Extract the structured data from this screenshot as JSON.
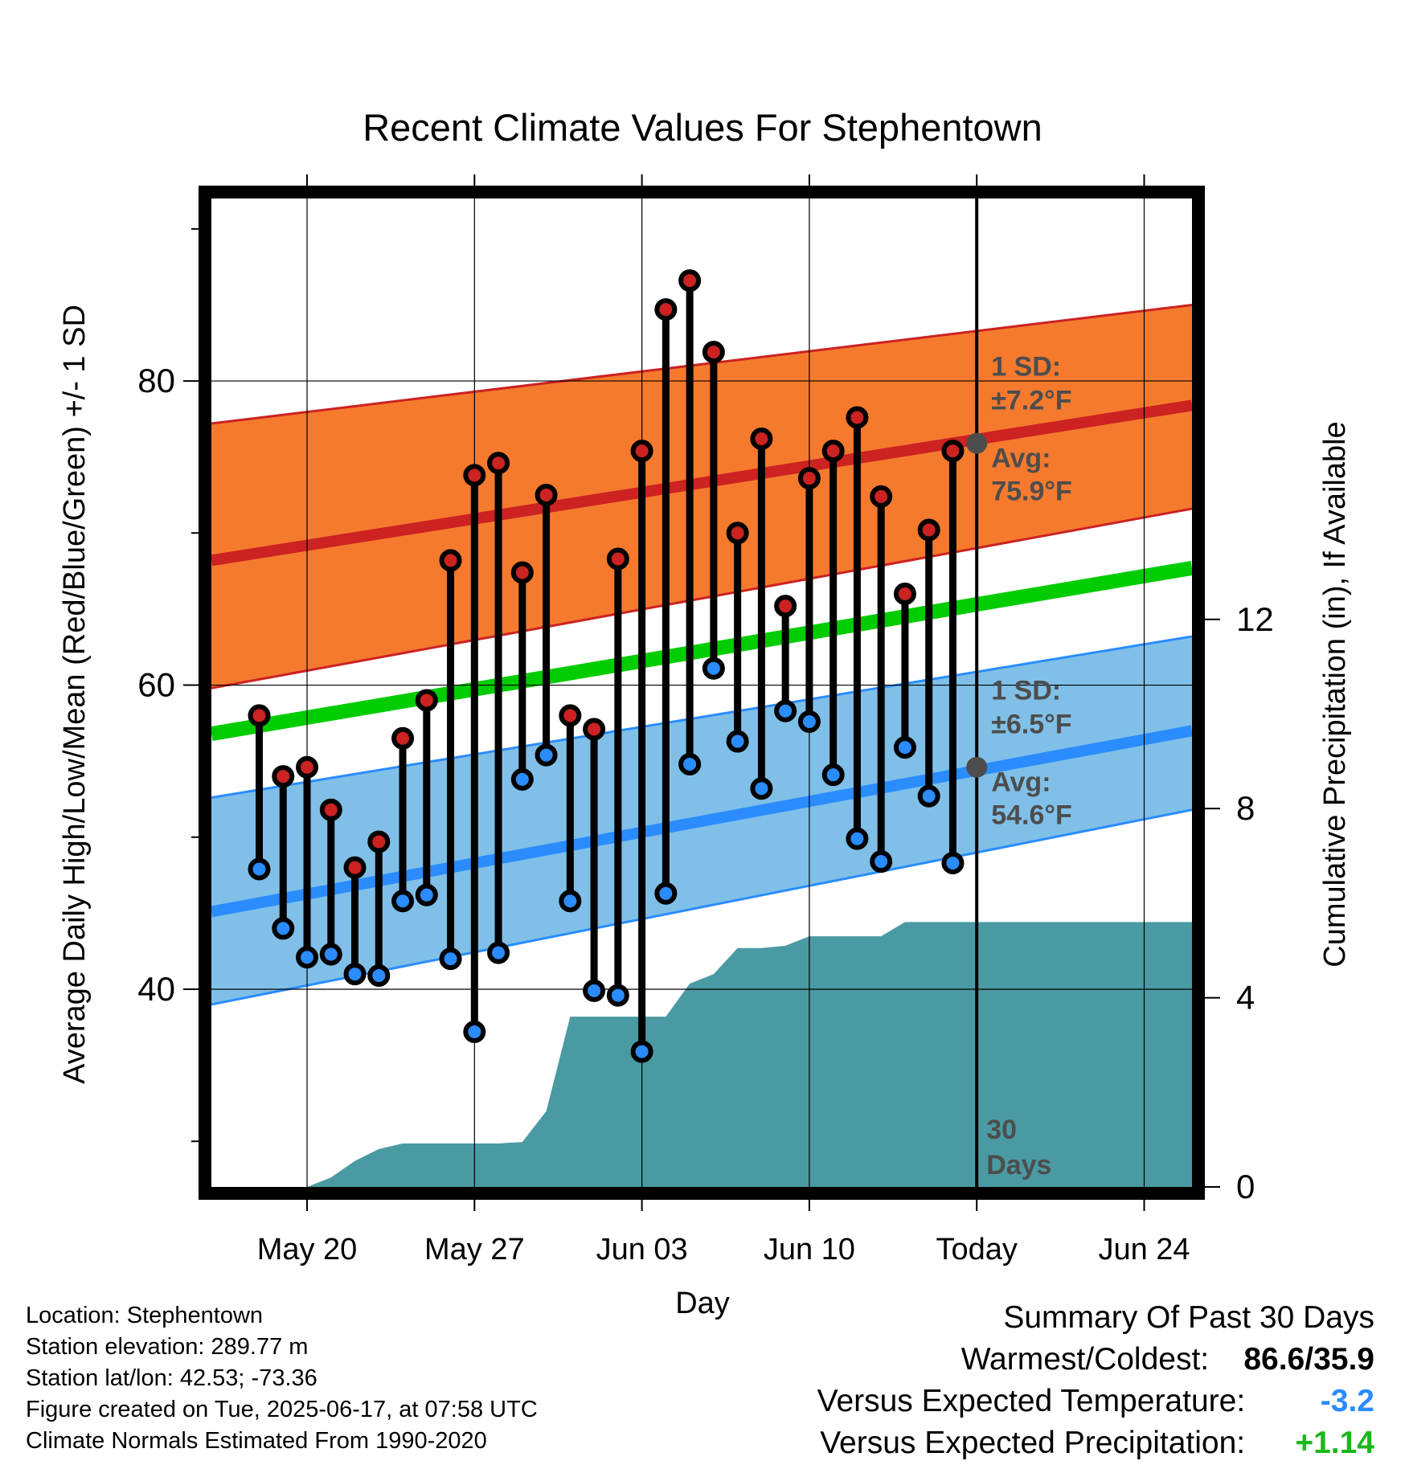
{
  "chart_data": {
    "type": "line",
    "title": "Recent Climate Values For Stephentown",
    "xlabel": "Day",
    "ylabel": "Average Daily High/Low/Mean (Red/Blue/Green) +/- 1 SD",
    "y2label": "Cumulative Precipitation (in), If Available",
    "ylim": [
      27,
      92
    ],
    "y2lim": [
      0,
      20.9
    ],
    "yticks": [
      40,
      60,
      80
    ],
    "y2ticks": [
      0,
      4,
      8,
      12
    ],
    "x_range": [
      "2025-05-16",
      "2025-06-26"
    ],
    "x_ticks": [
      {
        "date": "2025-05-20",
        "label": "May 20"
      },
      {
        "date": "2025-05-27",
        "label": "May 27"
      },
      {
        "date": "2025-06-03",
        "label": "Jun 03"
      },
      {
        "date": "2025-06-10",
        "label": "Jun 10"
      },
      {
        "date": "2025-06-17",
        "label": "Today"
      },
      {
        "date": "2025-06-24",
        "label": "Jun 24"
      }
    ],
    "grid": true,
    "today_marker": {
      "date": "2025-06-17",
      "label_line1": "30",
      "label_line2": "Days"
    },
    "dates": [
      "2025-05-18",
      "2025-05-19",
      "2025-05-20",
      "2025-05-21",
      "2025-05-22",
      "2025-05-23",
      "2025-05-24",
      "2025-05-25",
      "2025-05-26",
      "2025-05-27",
      "2025-05-28",
      "2025-05-29",
      "2025-05-30",
      "2025-05-31",
      "2025-06-01",
      "2025-06-02",
      "2025-06-03",
      "2025-06-04",
      "2025-06-05",
      "2025-06-06",
      "2025-06-07",
      "2025-06-08",
      "2025-06-09",
      "2025-06-10",
      "2025-06-11",
      "2025-06-12",
      "2025-06-13",
      "2025-06-14",
      "2025-06-15",
      "2025-06-16"
    ],
    "series": [
      {
        "name": "High",
        "color": "#cc2222",
        "values": [
          58.0,
          54.0,
          54.6,
          51.8,
          48.0,
          49.7,
          56.5,
          59.0,
          68.2,
          73.8,
          74.6,
          67.4,
          72.5,
          58.0,
          57.1,
          68.3,
          75.4,
          84.7,
          86.6,
          81.9,
          70.0,
          76.2,
          65.2,
          73.6,
          75.4,
          77.6,
          72.4,
          66.0,
          70.2,
          75.4
        ]
      },
      {
        "name": "Low",
        "color": "#2a8cff",
        "values": [
          47.9,
          44.0,
          42.1,
          42.3,
          41.0,
          40.9,
          45.8,
          46.2,
          42.0,
          37.2,
          42.4,
          53.8,
          55.4,
          45.8,
          39.9,
          39.6,
          35.9,
          46.3,
          54.8,
          61.1,
          56.3,
          53.2,
          58.3,
          57.6,
          54.1,
          49.9,
          48.4,
          55.9,
          52.7,
          48.3
        ]
      },
      {
        "name": "Cumulative Precipitation",
        "color": "#4a9aa3",
        "x": [
          "2025-05-16",
          "2025-05-17",
          "2025-05-18",
          "2025-05-19",
          "2025-05-20",
          "2025-05-21",
          "2025-05-22",
          "2025-05-23",
          "2025-05-24",
          "2025-05-25",
          "2025-05-26",
          "2025-05-27",
          "2025-05-28",
          "2025-05-29",
          "2025-05-30",
          "2025-05-31",
          "2025-06-01",
          "2025-06-02",
          "2025-06-03",
          "2025-06-04",
          "2025-06-05",
          "2025-06-06",
          "2025-06-07",
          "2025-06-08",
          "2025-06-09",
          "2025-06-10",
          "2025-06-11",
          "2025-06-12",
          "2025-06-13",
          "2025-06-14",
          "2025-06-15",
          "2025-06-16",
          "2025-06-26"
        ],
        "values": [
          0,
          0,
          0,
          0,
          0,
          0.2,
          0.55,
          0.8,
          0.92,
          0.92,
          0.92,
          0.92,
          0.92,
          0.95,
          1.6,
          3.6,
          3.6,
          3.6,
          3.6,
          3.6,
          4.3,
          4.5,
          5.05,
          5.05,
          5.1,
          5.3,
          5.3,
          5.3,
          5.3,
          5.6,
          5.6,
          5.6,
          5.6
        ]
      }
    ],
    "normals": {
      "high_avg": [
        68.2,
        78.4
      ],
      "high_sd_band": [
        [
          59.8,
          77.2
        ],
        [
          71.6,
          85.0
        ]
      ],
      "mean_avg": [
        56.8,
        67.7
      ],
      "low_avg": [
        45.1,
        57.0
      ],
      "low_sd_band": [
        [
          39.0,
          52.6
        ],
        [
          51.8,
          63.2
        ]
      ],
      "colors": {
        "high_band": "#f57a2e",
        "high_line": "#cc2222",
        "mean_line": "#00cc00",
        "low_band": "#80c0e8",
        "low_line": "#2a8cff",
        "precip": "#4a9aa3"
      }
    },
    "annotations": {
      "high": {
        "sd_label": "1 SD:",
        "sd_value": "±7.2°F",
        "avg_label": "Avg:",
        "avg_value": "75.9°F",
        "avg": 75.9
      },
      "low": {
        "sd_label": "1 SD:",
        "sd_value": "±6.5°F",
        "avg_label": "Avg:",
        "avg_value": "54.6°F",
        "avg": 54.6
      }
    }
  },
  "footer": {
    "lines": [
      "Location: Stephentown",
      "Station elevation: 289.77 m",
      "Station lat/lon: 42.53; -73.36",
      "Figure created on Tue, 2025-06-17, at 07:58 UTC",
      "Climate Normals Estimated From 1990-2020"
    ]
  },
  "summary": {
    "title": "Summary Of Past 30 Days",
    "warmest_label": "Warmest/Coldest:",
    "warmest_value": "86.6/35.9",
    "temp_label": "Versus Expected Temperature:",
    "temp_value": "-3.2",
    "temp_color": "#2a8cff",
    "precip_label": "Versus Expected Precipitation:",
    "precip_value": "+1.14",
    "precip_color": "#1bb81b"
  }
}
